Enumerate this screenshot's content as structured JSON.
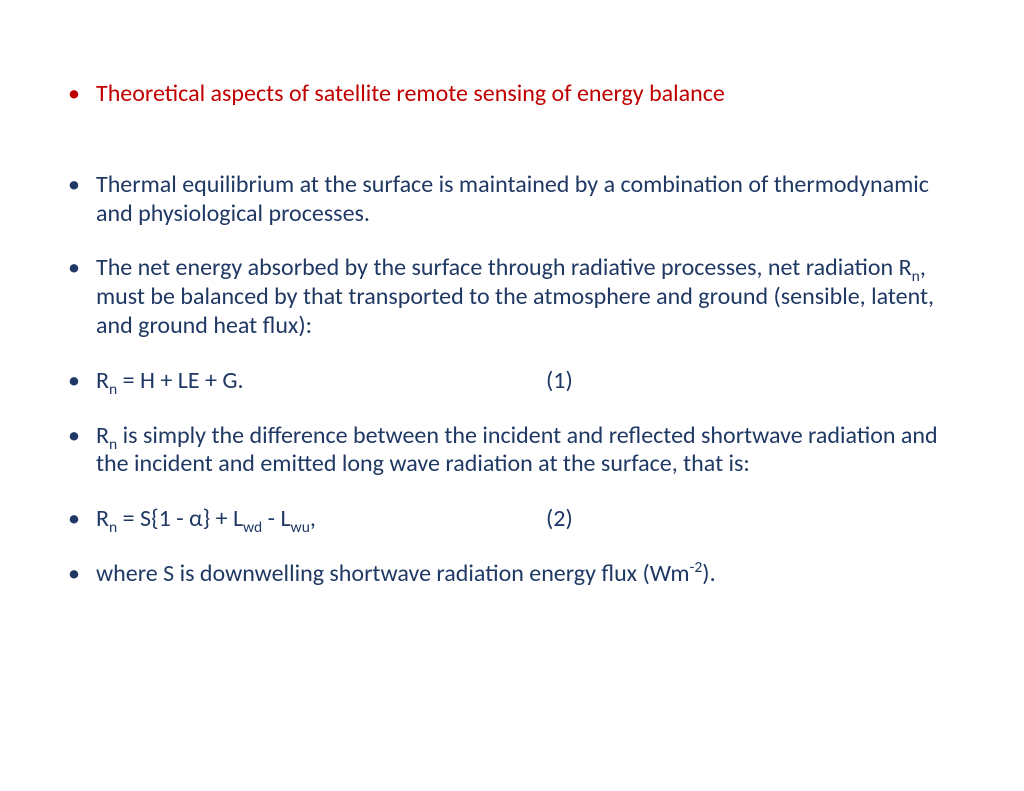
{
  "colors": {
    "title": "#c00000",
    "body": "#1f3864",
    "background": "#ffffff"
  },
  "typography": {
    "font_family": "Calibri",
    "font_size_pt": 18,
    "line_height": 1.2
  },
  "bullets": [
    {
      "kind": "title",
      "text": "Theoretical aspects of satellite remote sensing of energy balance"
    },
    {
      "kind": "body",
      "text": "Thermal equilibrium at the surface is maintained by a combination of thermodynamic and physiological processes."
    },
    {
      "kind": "body",
      "text_parts": [
        "The net energy absorbed by the surface through radiative processes, net radiation R",
        {
          "sub": "n"
        },
        ", must be balanced by that transported to the atmosphere and ground (sensible, latent, and ground heat flux):"
      ]
    },
    {
      "kind": "equation",
      "eq_parts": [
        "R",
        {
          "sub": "n"
        },
        " = H + LE + G."
      ],
      "eq_number": "(1)"
    },
    {
      "kind": "body",
      "text_parts": [
        "R",
        {
          "sub": "n"
        },
        " is simply the difference between the incident and reflected shortwave radiation and the incident and emitted long wave radiation at the surface, that is:"
      ]
    },
    {
      "kind": "equation",
      "eq_parts": [
        "R",
        {
          "sub": "n"
        },
        " = S{1 - α} + L",
        {
          "sub": "wd"
        },
        " - L",
        {
          "sub": "wu"
        },
        ","
      ],
      "eq_number": "(2)"
    },
    {
      "kind": "body",
      "text_parts": [
        "where S is downwelling shortwave radiation energy flux (Wm",
        {
          "sup": "-2"
        },
        ")."
      ]
    }
  ]
}
